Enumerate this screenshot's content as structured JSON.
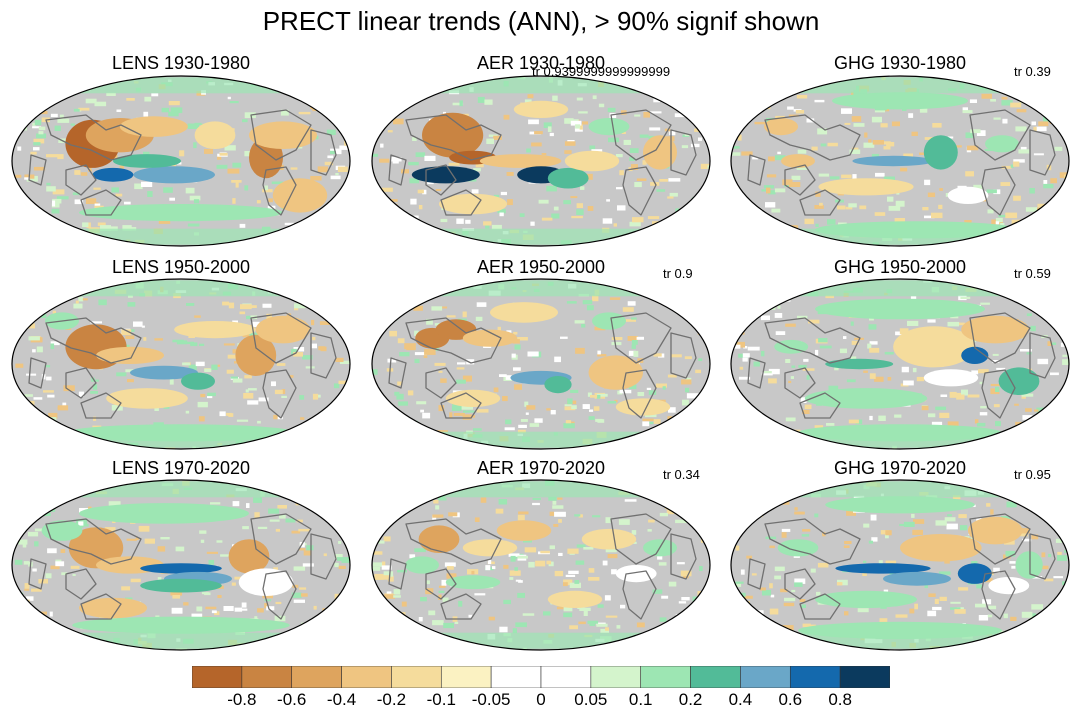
{
  "title": "PRECT linear trends (ANN), > 90% signif shown",
  "panels": [
    {
      "title": "LENS 1930-1980",
      "tr": ""
    },
    {
      "title": "AER 1930-1980",
      "tr": "tr 0.9399999999999999"
    },
    {
      "title": "GHG 1930-1980",
      "tr": "tr 0.39"
    },
    {
      "title": "LENS 1950-2000",
      "tr": ""
    },
    {
      "title": "AER 1950-2000",
      "tr": "tr 0.9"
    },
    {
      "title": "GHG 1950-2000",
      "tr": "tr 0.59"
    },
    {
      "title": "LENS 1970-2020",
      "tr": ""
    },
    {
      "title": "AER 1970-2020",
      "tr": "tr 0.34"
    },
    {
      "title": "GHG 1970-2020",
      "tr": "tr 0.95"
    }
  ],
  "colorbar": {
    "labels": [
      "-0.8",
      "-0.6",
      "-0.4",
      "-0.2",
      "-0.1",
      "-0.05",
      "0",
      "0.05",
      "0.1",
      "0.2",
      "0.4",
      "0.6",
      "0.8"
    ],
    "colors": [
      "#b5652a",
      "#c98442",
      "#dea45e",
      "#efc581",
      "#f5dc9c",
      "#fbf2c2",
      "#ffffff",
      "#ffffff",
      "#d4f4cc",
      "#9de6b3",
      "#52bb98",
      "#6aa7c8",
      "#1469ad",
      "#0b3a5e"
    ]
  },
  "colors": {
    "not_significant": "#c8c8c8",
    "coastline": "#707070"
  }
}
